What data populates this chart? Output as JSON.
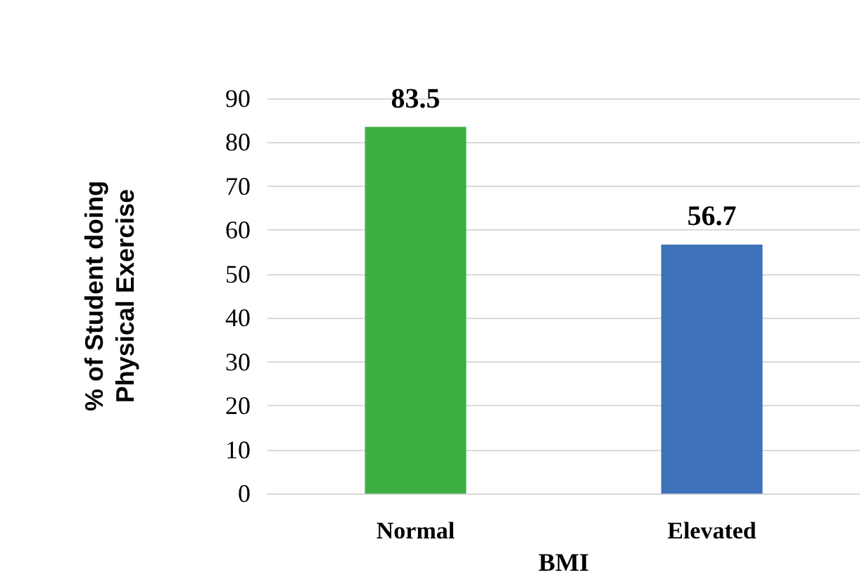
{
  "chart_data": {
    "type": "bar",
    "xlabel": "BMI",
    "ylabel": "% of Student doing\nPhysical Exercise",
    "categories": [
      "Normal",
      "Elevated"
    ],
    "values": [
      83.5,
      56.7
    ],
    "colors": [
      "#3cb043",
      "#3d72b8"
    ],
    "ylim": [
      0,
      90
    ],
    "yticks": [
      0,
      10,
      20,
      30,
      40,
      50,
      60,
      70,
      80,
      90
    ],
    "grid": "y",
    "data_labels": true
  }
}
